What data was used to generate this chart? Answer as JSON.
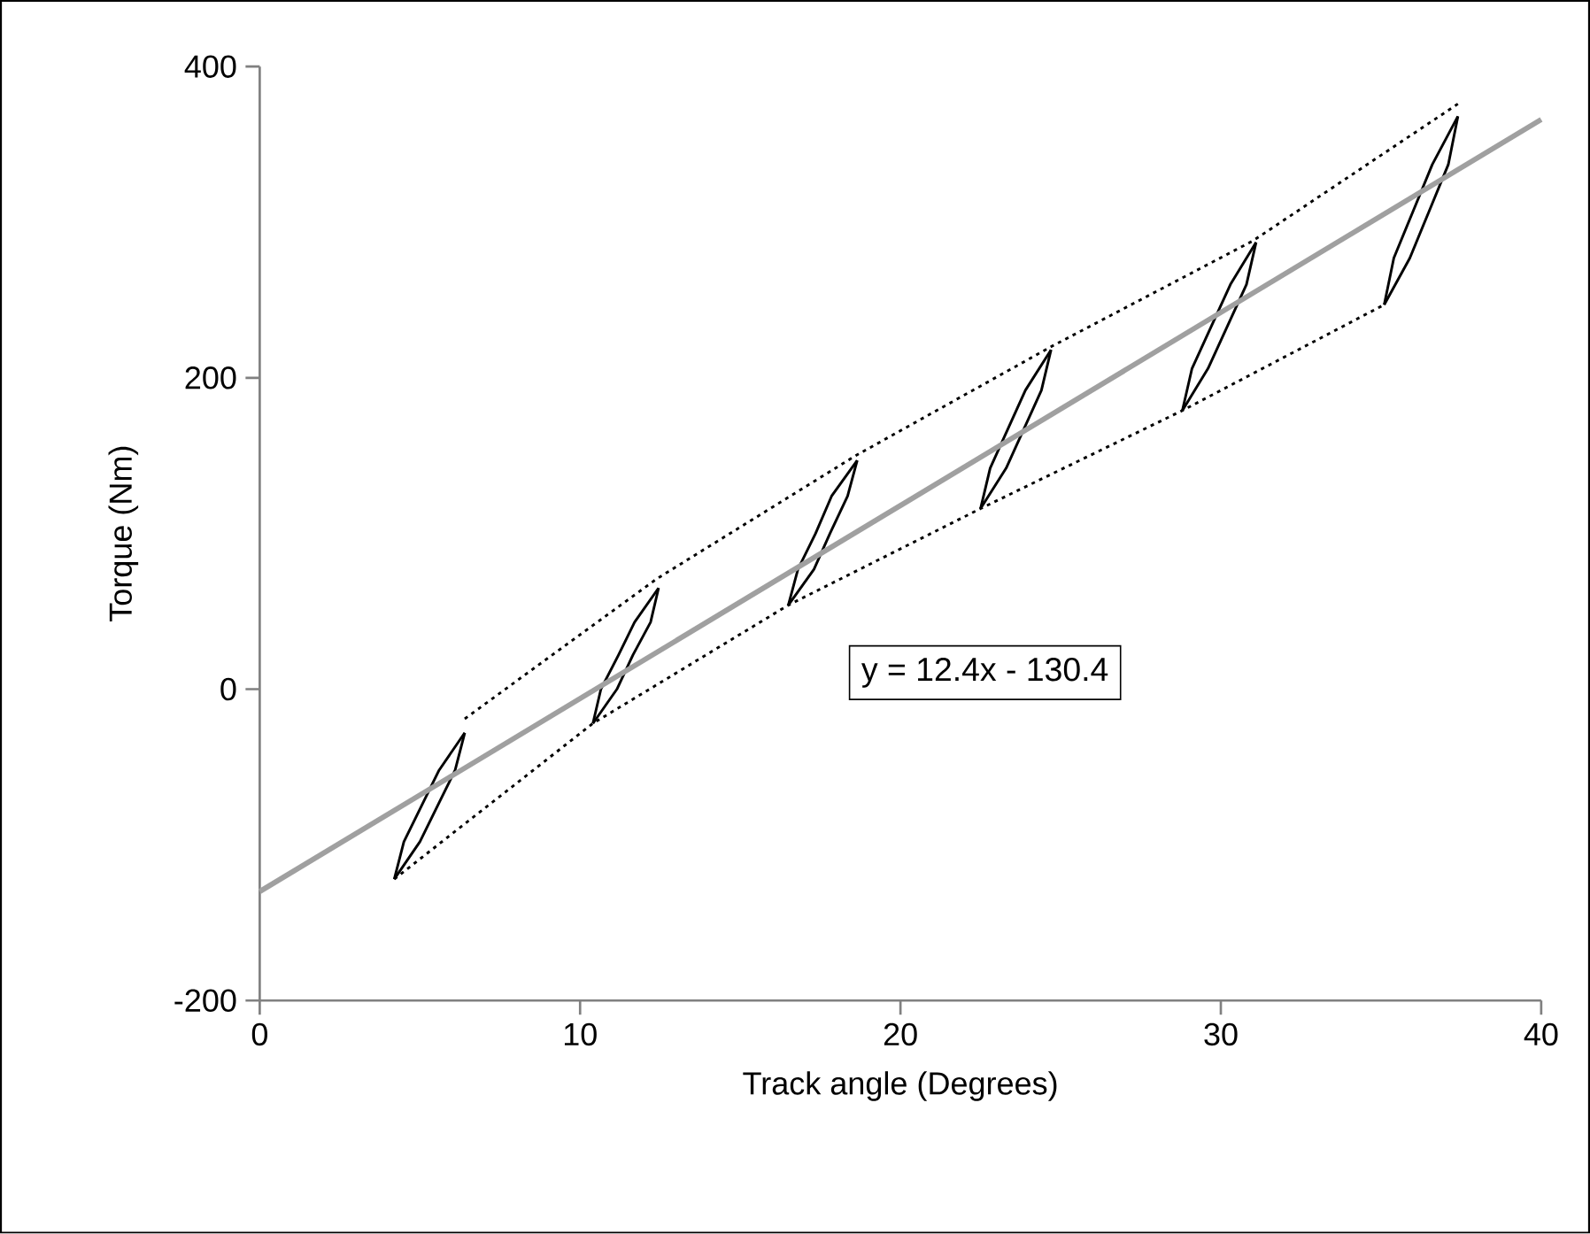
{
  "chart_data": {
    "type": "line",
    "xlabel": "Track angle (Degrees)",
    "ylabel": "Torque (Nm)",
    "xlim": [
      0,
      40
    ],
    "ylim": [
      -200,
      400
    ],
    "xticks": [
      0,
      10,
      20,
      30,
      40
    ],
    "yticks": [
      -200,
      0,
      200,
      400
    ],
    "grid": false,
    "marker": "none",
    "series": [
      {
        "color": "#000000",
        "line_style": "dotted",
        "x": [
          6.4,
          12.4,
          18.6,
          24.7,
          31.0,
          37.4
        ],
        "values": [
          -19,
          71,
          150,
          220,
          288,
          376
        ]
      },
      {
        "color": "#000000",
        "line_style": "dotted",
        "x": [
          4.2,
          10.4,
          16.5,
          22.5,
          28.8,
          35.1
        ],
        "values": [
          -122,
          -22,
          54,
          116,
          179,
          247
        ]
      },
      {
        "color": "#000000",
        "line_style": "solid",
        "x": [
          4.2,
          4.5,
          5.05,
          5.6,
          6.4
        ],
        "values": [
          -122,
          -98,
          -75,
          -52,
          -28
        ]
      },
      {
        "color": "#000000",
        "line_style": "solid",
        "x": [
          4.2,
          5.0,
          5.55,
          6.1,
          6.4
        ],
        "values": [
          -122,
          -98,
          -75,
          -52,
          -28
        ]
      },
      {
        "color": "#000000",
        "line_style": "solid",
        "x": [
          10.4,
          10.65,
          11.2,
          11.7,
          12.45
        ],
        "values": [
          -22,
          0,
          22,
          43,
          65
        ]
      },
      {
        "color": "#000000",
        "line_style": "solid",
        "x": [
          10.4,
          11.15,
          11.65,
          12.2,
          12.45
        ],
        "values": [
          -22,
          0,
          22,
          43,
          65
        ]
      },
      {
        "color": "#000000",
        "line_style": "solid",
        "x": [
          16.5,
          16.8,
          17.35,
          17.85,
          18.65
        ],
        "values": [
          54,
          77,
          100,
          124,
          147
        ]
      },
      {
        "color": "#000000",
        "line_style": "solid",
        "x": [
          16.5,
          17.3,
          17.8,
          18.35,
          18.65
        ],
        "values": [
          54,
          77,
          100,
          124,
          147
        ]
      },
      {
        "color": "#000000",
        "line_style": "solid",
        "x": [
          22.5,
          22.8,
          23.35,
          23.9,
          24.7
        ],
        "values": [
          116,
          142,
          167,
          192,
          218
        ]
      },
      {
        "color": "#000000",
        "line_style": "solid",
        "x": [
          22.5,
          23.3,
          23.85,
          24.4,
          24.7
        ],
        "values": [
          116,
          142,
          167,
          192,
          218
        ]
      },
      {
        "color": "#000000",
        "line_style": "solid",
        "x": [
          28.8,
          29.1,
          29.7,
          30.3,
          31.1
        ],
        "values": [
          179,
          206,
          233,
          260,
          287
        ]
      },
      {
        "color": "#000000",
        "line_style": "solid",
        "x": [
          28.8,
          29.6,
          30.2,
          30.8,
          31.1
        ],
        "values": [
          179,
          206,
          233,
          260,
          287
        ]
      },
      {
        "color": "#000000",
        "line_style": "solid",
        "x": [
          35.1,
          35.4,
          36.0,
          36.6,
          37.4
        ],
        "values": [
          247,
          277,
          307,
          337,
          368
        ]
      },
      {
        "color": "#000000",
        "line_style": "solid",
        "x": [
          35.1,
          35.9,
          36.5,
          37.1,
          37.4
        ],
        "values": [
          247,
          277,
          307,
          337,
          368
        ]
      },
      {
        "color": "#a0a0a0",
        "line_style": "solid",
        "x": [
          0,
          40
        ],
        "values": [
          -130,
          366
        ]
      }
    ],
    "annotations": [
      "y = 12.4x - 130.4"
    ]
  }
}
